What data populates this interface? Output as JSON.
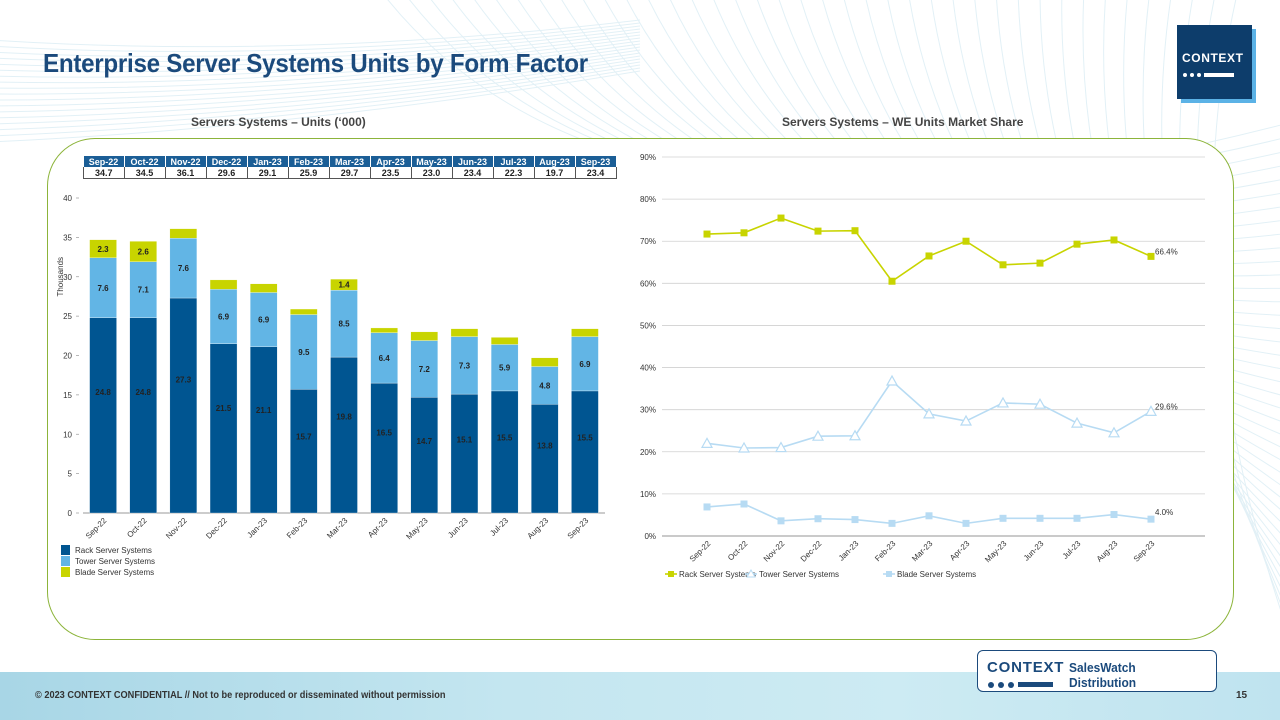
{
  "page": {
    "title": "Enterprise Server Systems Units by Form Factor",
    "footer_text": "© 2023 CONTEXT CONFIDENTIAL // Not to be reproduced or disseminated without permission",
    "page_number": "15",
    "logo_text": "CONTEXT",
    "brand_name": "CONTEXT",
    "brand_product": "SalesWatch Distribution",
    "colors": {
      "rack": "#005591",
      "tower": "#62b5e5",
      "blade": "#c8d400",
      "title": "#1b4a7c",
      "panel_border": "#8cb43a",
      "line_tower": "#b7dbf3",
      "line_blade": "#b7dbf3"
    }
  },
  "totals_table": {
    "headers": [
      "Sep-22",
      "Oct-22",
      "Nov-22",
      "Dec-22",
      "Jan-23",
      "Feb-23",
      "Mar-23",
      "Apr-23",
      "May-23",
      "Jun-23",
      "Jul-23",
      "Aug-23",
      "Sep-23"
    ],
    "values": [
      "34.7",
      "34.5",
      "36.1",
      "29.6",
      "29.1",
      "25.9",
      "29.7",
      "23.5",
      "23.0",
      "23.4",
      "22.3",
      "19.7",
      "23.4"
    ]
  },
  "chart_data": [
    {
      "type": "bar",
      "stacked": true,
      "title": "Servers Systems – Units (‘000)",
      "xlabel": "",
      "ylabel": "Thousands",
      "ylim": [
        0,
        40
      ],
      "yticks": [
        0,
        5,
        10,
        15,
        20,
        25,
        30,
        35,
        40
      ],
      "grid": false,
      "legend": "bottom-left",
      "categories": [
        "Sep-22",
        "Oct-22",
        "Nov-22",
        "Dec-22",
        "Jan-23",
        "Feb-23",
        "Mar-23",
        "Apr-23",
        "May-23",
        "Jun-23",
        "Jul-23",
        "Aug-23",
        "Sep-23"
      ],
      "series": [
        {
          "name": "Rack Server Systems",
          "values": [
            24.8,
            24.8,
            27.3,
            21.5,
            21.1,
            15.7,
            19.8,
            16.5,
            14.7,
            15.1,
            15.5,
            13.8,
            15.5
          ],
          "labels": [
            "24.8",
            "24.8",
            "27.3",
            "21.5",
            "21.1",
            "15.7",
            "19.8",
            "16.5",
            "14.7",
            "15.1",
            "15.5",
            "13.8",
            "15.5"
          ]
        },
        {
          "name": "Tower Server Systems",
          "values": [
            7.6,
            7.1,
            7.6,
            6.9,
            6.9,
            9.5,
            8.5,
            6.4,
            7.2,
            7.3,
            5.9,
            4.8,
            6.9
          ],
          "labels": [
            "7.6",
            "7.1",
            "7.6",
            "6.9",
            "6.9",
            "9.5",
            "8.5",
            "6.4",
            "7.2",
            "7.3",
            "5.9",
            "4.8",
            "6.9"
          ]
        },
        {
          "name": "Blade Server Systems",
          "values": [
            2.3,
            2.6,
            1.2,
            1.2,
            1.1,
            0.7,
            1.4,
            0.6,
            1.1,
            1.0,
            0.9,
            1.1,
            1.0
          ],
          "labels": [
            "2.3",
            "2.6",
            "",
            "",
            "",
            "",
            "1.4",
            "",
            "",
            "",
            "",
            "",
            ""
          ]
        }
      ]
    },
    {
      "type": "line",
      "title": "Servers Systems – WE Units Market Share",
      "xlabel": "",
      "ylabel": "",
      "ylim": [
        0,
        90
      ],
      "yticks": [
        "0%",
        "10%",
        "20%",
        "30%",
        "40%",
        "50%",
        "60%",
        "70%",
        "80%",
        "90%"
      ],
      "grid": true,
      "legend": "bottom-left",
      "categories": [
        "Sep-22",
        "Oct-22",
        "Nov-22",
        "Dec-22",
        "Jan-23",
        "Feb-23",
        "Mar-23",
        "Apr-23",
        "May-23",
        "Jun-23",
        "Jul-23",
        "Aug-23",
        "Sep-23"
      ],
      "series": [
        {
          "name": "Rack Server Systems",
          "marker": "square",
          "values": [
            71.7,
            72.0,
            75.5,
            72.4,
            72.5,
            60.5,
            66.5,
            70.0,
            64.4,
            64.8,
            69.3,
            70.3,
            66.4
          ],
          "end_label": "66.4%"
        },
        {
          "name": "Tower Server Systems",
          "marker": "triangle",
          "values": [
            22.0,
            20.9,
            21.0,
            23.7,
            23.8,
            36.8,
            29.0,
            27.3,
            31.6,
            31.3,
            26.8,
            24.5,
            29.6
          ],
          "end_label": "29.6%"
        },
        {
          "name": "Blade Server Systems",
          "marker": "square",
          "values": [
            6.9,
            7.6,
            3.6,
            4.1,
            3.9,
            3.0,
            4.8,
            3.0,
            4.2,
            4.2,
            4.2,
            5.1,
            4.0
          ],
          "end_label": "4.0%"
        }
      ]
    }
  ]
}
